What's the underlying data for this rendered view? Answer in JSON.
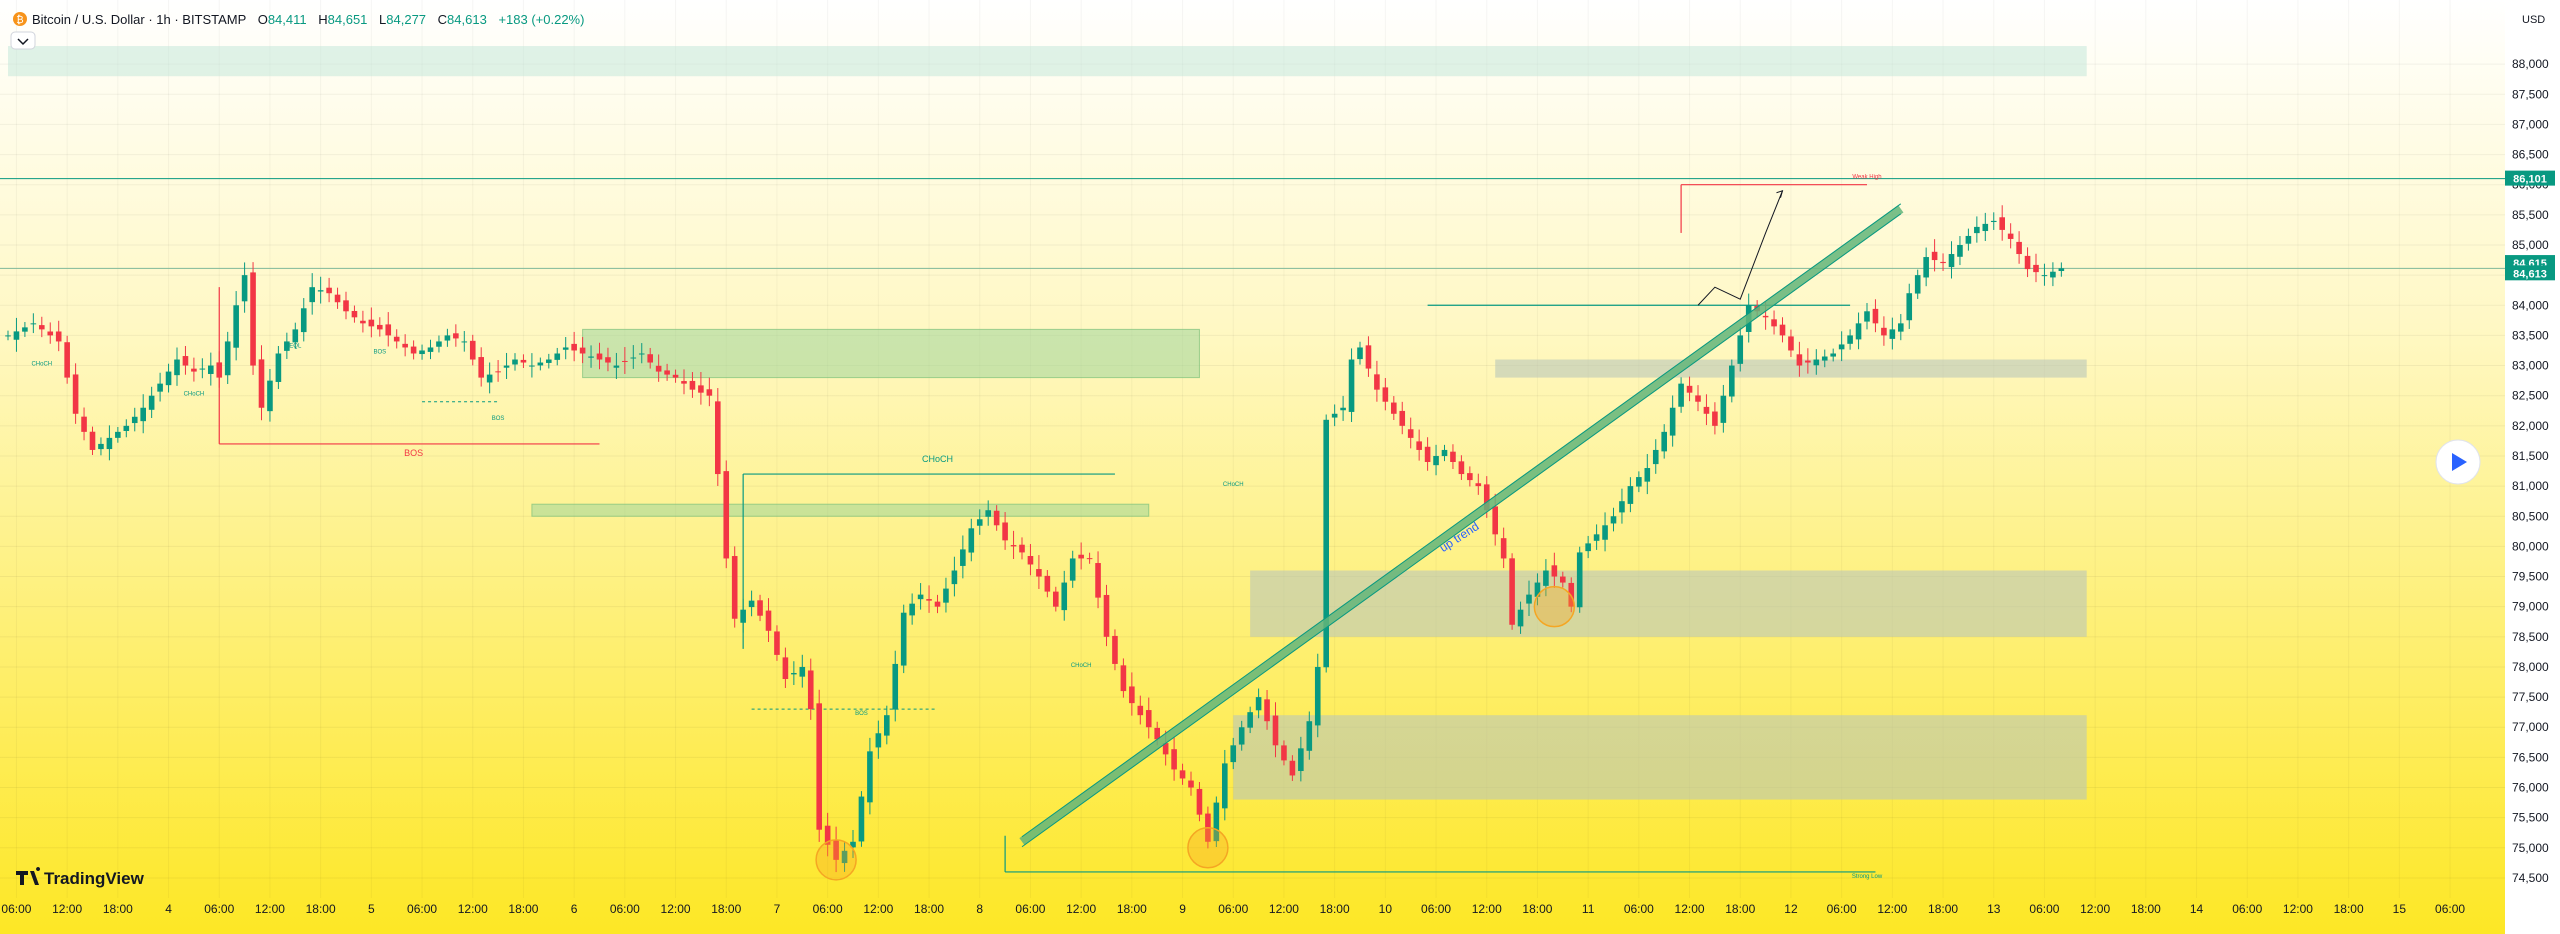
{
  "header": {
    "symbol": "Bitcoin / U.S. Dollar · 1h · BITSTAMP",
    "open_label": "O",
    "open_value": "84,411",
    "high_label": "H",
    "high_value": "84,651",
    "low_label": "L",
    "low_value": "84,277",
    "close_label": "C",
    "close_value": "84,613",
    "change": "+183 (+0.22%)",
    "currency": "USD"
  },
  "colors": {
    "bull": "#089981",
    "bear": "#f23645",
    "bg_top": "#ffffff",
    "bg_bottom": "#fde725",
    "zone_green": "#9fd69a",
    "zone_grey": "#b9c6b9",
    "trend": "#63b57a",
    "circle": "#f5a623"
  },
  "price_badges": {
    "key_level": "86,101",
    "price_a": "84,615",
    "price_b": "84,613"
  },
  "logo_text": "TradingView",
  "chart_data": {
    "type": "candlestick",
    "title": "Bitcoin / U.S. Dollar · 1h · BITSTAMP",
    "ylim": [
      74300,
      88500
    ],
    "y_ticks": [
      74500,
      75000,
      75500,
      76000,
      76500,
      77000,
      77500,
      78000,
      78500,
      79000,
      79500,
      80000,
      80500,
      81000,
      81500,
      82000,
      82500,
      83000,
      83500,
      84000,
      84500,
      85000,
      85500,
      86000,
      86500,
      87000,
      87500,
      88000
    ],
    "y_tick_labels": [
      "74,500",
      "75,000",
      "75,500",
      "76,000",
      "76,500",
      "77,000",
      "77,500",
      "78,000",
      "78,500",
      "79,000",
      "79,500",
      "80,000",
      "80,500",
      "81,000",
      "81,500",
      "82,000",
      "82,500",
      "83,000",
      "83,500",
      "84,000",
      "84,500",
      "85,000",
      "85,500",
      "86,000",
      "86,500",
      "87,000",
      "87,500",
      "88,000"
    ],
    "x_range_hours": [
      0,
      244
    ],
    "x_ticks": [
      {
        "h": 1,
        "label": "06:00"
      },
      {
        "h": 7,
        "label": "12:00"
      },
      {
        "h": 13,
        "label": "18:00"
      },
      {
        "h": 19,
        "label": "4"
      },
      {
        "h": 25,
        "label": "06:00"
      },
      {
        "h": 31,
        "label": "12:00"
      },
      {
        "h": 37,
        "label": "18:00"
      },
      {
        "h": 43,
        "label": "5"
      },
      {
        "h": 49,
        "label": "06:00"
      },
      {
        "h": 55,
        "label": "12:00"
      },
      {
        "h": 61,
        "label": "18:00"
      },
      {
        "h": 67,
        "label": "6"
      },
      {
        "h": 73,
        "label": "06:00"
      },
      {
        "h": 79,
        "label": "12:00"
      },
      {
        "h": 85,
        "label": "18:00"
      },
      {
        "h": 91,
        "label": "7"
      },
      {
        "h": 97,
        "label": "06:00"
      },
      {
        "h": 103,
        "label": "12:00"
      },
      {
        "h": 109,
        "label": "18:00"
      },
      {
        "h": 115,
        "label": "8"
      },
      {
        "h": 121,
        "label": "06:00"
      },
      {
        "h": 127,
        "label": "12:00"
      },
      {
        "h": 133,
        "label": "18:00"
      },
      {
        "h": 139,
        "label": "9"
      },
      {
        "h": 145,
        "label": "06:00"
      },
      {
        "h": 151,
        "label": "12:00"
      },
      {
        "h": 157,
        "label": "18:00"
      },
      {
        "h": 163,
        "label": "10"
      },
      {
        "h": 169,
        "label": "06:00"
      },
      {
        "h": 175,
        "label": "12:00"
      },
      {
        "h": 181,
        "label": "18:00"
      },
      {
        "h": 187,
        "label": "11"
      },
      {
        "h": 193,
        "label": "06:00"
      },
      {
        "h": 199,
        "label": "12:00"
      },
      {
        "h": 205,
        "label": "18:00"
      },
      {
        "h": 211,
        "label": "12"
      },
      {
        "h": 217,
        "label": "06:00"
      },
      {
        "h": 223,
        "label": "12:00"
      },
      {
        "h": 229,
        "label": "18:00"
      },
      {
        "h": 235,
        "label": "13"
      },
      {
        "h": 241,
        "label": "06:00"
      },
      {
        "h": 247,
        "label": "12:00"
      },
      {
        "h": 253,
        "label": "18:00"
      },
      {
        "h": 259,
        "label": "14"
      },
      {
        "h": 265,
        "label": "06:00"
      },
      {
        "h": 271,
        "label": "12:00"
      },
      {
        "h": 277,
        "label": "18:00"
      },
      {
        "h": 283,
        "label": "15"
      },
      {
        "h": 289,
        "label": "06:00"
      }
    ],
    "close_path": [
      [
        0,
        83500
      ],
      [
        3,
        83700
      ],
      [
        6,
        83400
      ],
      [
        8,
        82200
      ],
      [
        10,
        81600
      ],
      [
        12,
        81800
      ],
      [
        14,
        82000
      ],
      [
        16,
        82300
      ],
      [
        18,
        82700
      ],
      [
        20,
        83100
      ],
      [
        22,
        82900
      ],
      [
        24,
        83000
      ],
      [
        25,
        82800
      ],
      [
        27,
        84000
      ],
      [
        28,
        84500
      ],
      [
        29,
        83000
      ],
      [
        30,
        82300
      ],
      [
        32,
        83200
      ],
      [
        34,
        83600
      ],
      [
        36,
        84300
      ],
      [
        38,
        84200
      ],
      [
        40,
        83900
      ],
      [
        42,
        83700
      ],
      [
        44,
        83600
      ],
      [
        46,
        83400
      ],
      [
        48,
        83200
      ],
      [
        50,
        83300
      ],
      [
        52,
        83500
      ],
      [
        54,
        83400
      ],
      [
        56,
        82800
      ],
      [
        58,
        82900
      ],
      [
        60,
        83100
      ],
      [
        62,
        83000
      ],
      [
        64,
        83100
      ],
      [
        66,
        83300
      ],
      [
        68,
        83200
      ],
      [
        70,
        83100
      ],
      [
        72,
        83000
      ],
      [
        75,
        83200
      ],
      [
        77,
        82900
      ],
      [
        79,
        82800
      ],
      [
        81,
        82600
      ],
      [
        83,
        82500
      ],
      [
        84,
        81200
      ],
      [
        85,
        79800
      ],
      [
        86,
        78800
      ],
      [
        88,
        79100
      ],
      [
        90,
        78600
      ],
      [
        92,
        77800
      ],
      [
        94,
        78000
      ],
      [
        95,
        77300
      ],
      [
        96,
        75300
      ],
      [
        98,
        74800
      ],
      [
        100,
        75100
      ],
      [
        102,
        76600
      ],
      [
        104,
        77200
      ],
      [
        106,
        78900
      ],
      [
        108,
        79200
      ],
      [
        110,
        79000
      ],
      [
        112,
        79600
      ],
      [
        114,
        80300
      ],
      [
        116,
        80600
      ],
      [
        118,
        80100
      ],
      [
        120,
        79900
      ],
      [
        122,
        79500
      ],
      [
        124,
        79000
      ],
      [
        126,
        79800
      ],
      [
        128,
        79800
      ],
      [
        130,
        78500
      ],
      [
        132,
        77600
      ],
      [
        134,
        77200
      ],
      [
        136,
        76800
      ],
      [
        138,
        76300
      ],
      [
        140,
        76000
      ],
      [
        142,
        75100
      ],
      [
        144,
        76400
      ],
      [
        146,
        77000
      ],
      [
        148,
        77500
      ],
      [
        150,
        76700
      ],
      [
        152,
        76200
      ],
      [
        154,
        77100
      ],
      [
        155,
        78000
      ],
      [
        156,
        82100
      ],
      [
        158,
        82300
      ],
      [
        159,
        83100
      ],
      [
        160,
        83300
      ],
      [
        162,
        82600
      ],
      [
        164,
        82200
      ],
      [
        166,
        81800
      ],
      [
        168,
        81400
      ],
      [
        170,
        81600
      ],
      [
        172,
        81200
      ],
      [
        174,
        81000
      ],
      [
        176,
        80200
      ],
      [
        177,
        79800
      ],
      [
        178,
        78700
      ],
      [
        180,
        79200
      ],
      [
        182,
        79600
      ],
      [
        184,
        79400
      ],
      [
        185,
        79000
      ],
      [
        186,
        79900
      ],
      [
        188,
        80200
      ],
      [
        190,
        80500
      ],
      [
        192,
        81000
      ],
      [
        194,
        81300
      ],
      [
        196,
        81900
      ],
      [
        198,
        82700
      ],
      [
        200,
        82400
      ],
      [
        202,
        82000
      ],
      [
        204,
        83000
      ],
      [
        206,
        84000
      ],
      [
        208,
        83800
      ],
      [
        210,
        83500
      ],
      [
        212,
        83000
      ],
      [
        214,
        83100
      ],
      [
        216,
        83200
      ],
      [
        218,
        83500
      ],
      [
        220,
        83900
      ],
      [
        222,
        83500
      ],
      [
        224,
        83700
      ],
      [
        225,
        84200
      ],
      [
        227,
        84800
      ],
      [
        229,
        84700
      ],
      [
        231,
        85000
      ],
      [
        233,
        85300
      ],
      [
        235,
        85400
      ],
      [
        237,
        85100
      ],
      [
        239,
        84600
      ],
      [
        241,
        84500
      ],
      [
        243,
        84613
      ]
    ],
    "series": [
      {
        "name": "BTCUSD 1h"
      }
    ],
    "horizontal_levels": [
      {
        "name": "key resistance",
        "value": 86101,
        "color": "#089981"
      },
      {
        "name": "current price",
        "value": 84613,
        "color": "#7fb89a"
      }
    ],
    "zones": [
      {
        "name": "supply-zone-1",
        "x_start": 68,
        "x_end": 141,
        "y_low": 82800,
        "y_high": 83600,
        "color": "green"
      },
      {
        "name": "supply-zone-2",
        "x_start": 62,
        "x_end": 135,
        "y_low": 80500,
        "y_high": 80700,
        "color": "green"
      },
      {
        "name": "demand-zone-1",
        "x_start": 145,
        "x_end": 246,
        "y_low": 75800,
        "y_high": 77200,
        "color": "grey"
      },
      {
        "name": "demand-zone-2",
        "x_start": 147,
        "x_end": 246,
        "y_low": 78500,
        "y_high": 79600,
        "color": "grey"
      },
      {
        "name": "demand-zone-3",
        "x_start": 176,
        "x_end": 246,
        "y_low": 82800,
        "y_high": 83100,
        "color": "grey"
      },
      {
        "name": "top-band",
        "x_start": 0,
        "x_end": 246,
        "y_low": 87800,
        "y_high": 88300,
        "color": "teal"
      }
    ],
    "trendline": {
      "label": "up trend",
      "from": [
        120,
        75100
      ],
      "to": [
        224,
        85600
      ]
    },
    "segments": [
      {
        "name": "bos-line",
        "label": "BOS",
        "from": [
          25,
          81700
        ],
        "to": [
          70,
          81700
        ],
        "color": "#f23645"
      },
      {
        "name": "choch-line",
        "label": "CHoCH",
        "from": [
          87,
          81200
        ],
        "to": [
          131,
          81200
        ],
        "color": "#089981"
      },
      {
        "name": "weak-high-line",
        "label": "Weak High",
        "from": [
          198,
          86000
        ],
        "to": [
          220,
          86000
        ],
        "color": "#f23645"
      },
      {
        "name": "strong-low-line",
        "label": "Strong Low",
        "from": [
          118,
          74600
        ],
        "to": [
          221,
          74600
        ],
        "color": "#089981"
      },
      {
        "name": "mid-level-line",
        "from": [
          168,
          84000
        ],
        "to": [
          218,
          84000
        ],
        "color": "#089981"
      }
    ],
    "annotations": [
      {
        "text": "BOS",
        "x": 48,
        "y": 81500,
        "color": "#f23645",
        "size": 9
      },
      {
        "text": "CHoCH",
        "x": 110,
        "y": 81400,
        "color": "#089981",
        "size": 9
      },
      {
        "text": "up trend",
        "x": 172,
        "y": 80100,
        "color": "#2962ff",
        "size": 12
      },
      {
        "text": "Weak High",
        "x": 220,
        "y": 86100,
        "color": "#f23645",
        "size": 6
      },
      {
        "text": "Strong Low",
        "x": 220,
        "y": 74500,
        "color": "#089981",
        "size": 6
      },
      {
        "text": "CHoCH",
        "x": 4,
        "y": 83000,
        "color": "#089981",
        "size": 6
      },
      {
        "text": "CHoCH",
        "x": 22,
        "y": 82500,
        "color": "#089981",
        "size": 6
      },
      {
        "text": "EQL",
        "x": 34,
        "y": 83300,
        "color": "#089981",
        "size": 6
      },
      {
        "text": "BOS",
        "x": 44,
        "y": 83200,
        "color": "#089981",
        "size": 6
      },
      {
        "text": "BOS",
        "x": 58,
        "y": 82100,
        "color": "#089981",
        "size": 6
      },
      {
        "text": "BOS",
        "x": 101,
        "y": 77200,
        "color": "#089981",
        "size": 6
      },
      {
        "text": "CHoCH",
        "x": 145,
        "y": 81000,
        "color": "#089981",
        "size": 6
      },
      {
        "text": "CHoCH",
        "x": 127,
        "y": 78000,
        "color": "#089981",
        "size": 6
      }
    ],
    "circles": [
      [
        98,
        74800
      ],
      [
        142,
        75000
      ],
      [
        183,
        79000
      ]
    ],
    "projection": [
      [
        200,
        84000
      ],
      [
        202,
        84300
      ],
      [
        205,
        84100
      ],
      [
        208,
        85200
      ],
      [
        210,
        85900
      ]
    ]
  }
}
